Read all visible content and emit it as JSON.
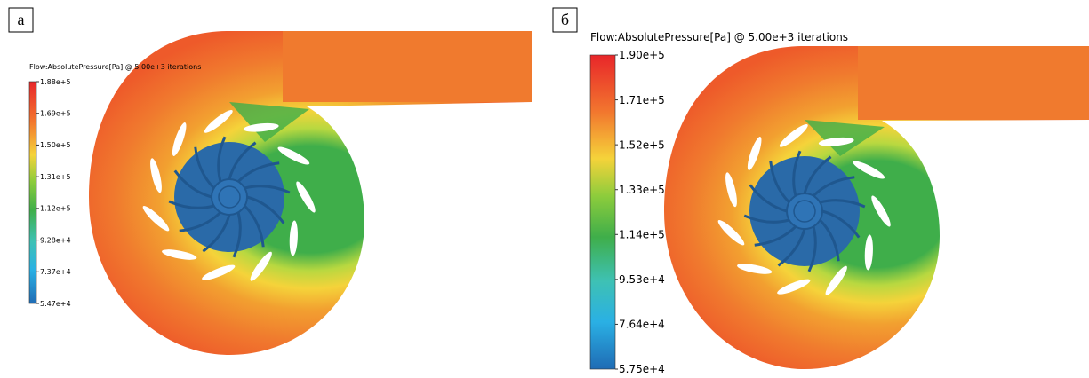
{
  "panels": [
    {
      "label": "а",
      "legend": {
        "title": "Flow:AbsolutePressure[Pa] @ 5.00e+3 iterations",
        "ticks": [
          "1.88e+5",
          "1.69e+5",
          "1.50e+5",
          "1.31e+5",
          "1.12e+5",
          "9.28e+4",
          "7.37e+4",
          "5.47e+4"
        ]
      }
    },
    {
      "label": "б",
      "legend": {
        "title": "Flow:AbsolutePressure[Pa] @ 5.00e+3 iterations",
        "ticks": [
          "1.90e+5",
          "1.71e+5",
          "1.52e+5",
          "1.33e+5",
          "1.14e+5",
          "9.53e+4",
          "7.64e+4",
          "5.75e+4"
        ]
      }
    }
  ]
}
